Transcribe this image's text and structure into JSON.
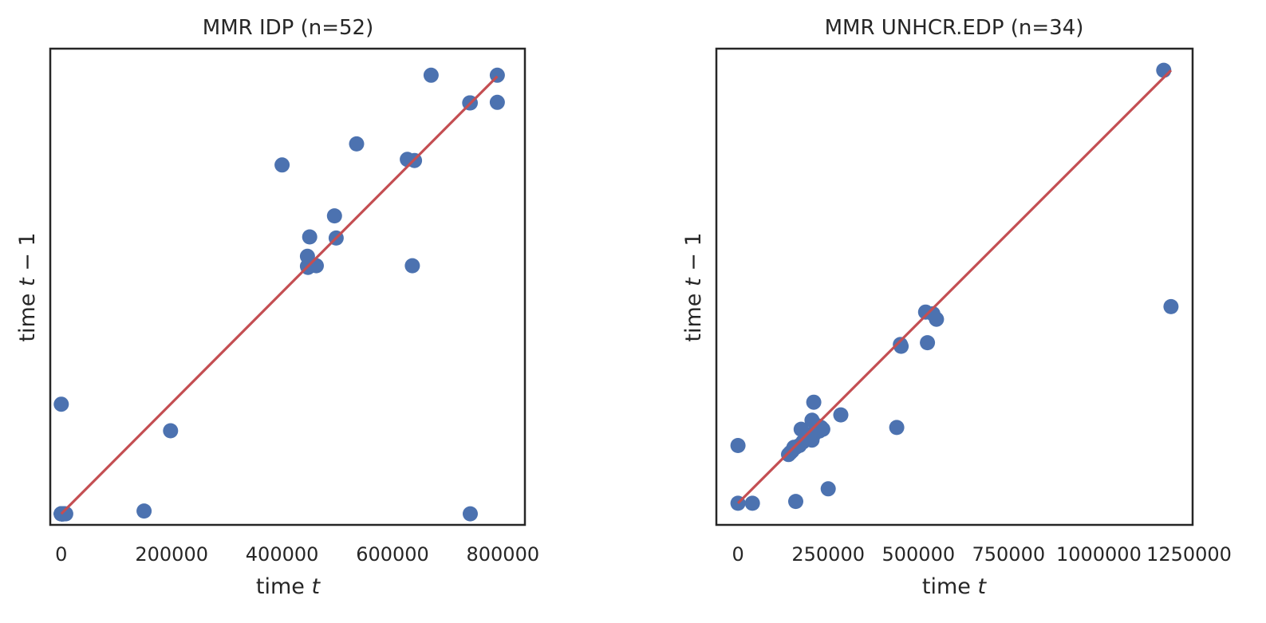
{
  "colors": {
    "points": "#4c72b0",
    "line": "#c44e52",
    "frame": "#262626",
    "text": "#262626",
    "background": "#ffffff"
  },
  "chart_data": [
    {
      "type": "scatter",
      "title": "MMR IDP (n=52)",
      "xlabel_prefix": "time ",
      "xlabel_var": "t",
      "ylabel_prefix": "time ",
      "ylabel_var": "t",
      "ylabel_suffix": " − 1",
      "xlim": [
        -20000,
        840000
      ],
      "ylim": [
        -20000,
        840000
      ],
      "xticks": [
        0,
        200000,
        400000,
        600000,
        800000
      ],
      "xtick_labels": [
        "0",
        "200000",
        "400000",
        "600000",
        "800000"
      ],
      "yticks_visible": false,
      "grid": false,
      "fit_line": [
        [
          0,
          0
        ],
        [
          790000,
          790000
        ]
      ],
      "points": [
        [
          0,
          0
        ],
        [
          3000,
          0
        ],
        [
          1000,
          0
        ],
        [
          0,
          0
        ],
        [
          2000,
          0
        ],
        [
          0,
          0
        ],
        [
          1500,
          0
        ],
        [
          500,
          0
        ],
        [
          4000,
          0
        ],
        [
          2500,
          0
        ],
        [
          0,
          0
        ],
        [
          3500,
          0
        ],
        [
          1000,
          0
        ],
        [
          0,
          0
        ],
        [
          2000,
          0
        ],
        [
          5000,
          0
        ],
        [
          0,
          0
        ],
        [
          1000,
          0
        ],
        [
          3000,
          0
        ],
        [
          0,
          0
        ],
        [
          2000,
          0
        ],
        [
          0,
          0
        ],
        [
          4000,
          0
        ],
        [
          1500,
          0
        ],
        [
          0,
          0
        ],
        [
          2500,
          0
        ],
        [
          500,
          0
        ],
        [
          0,
          0
        ],
        [
          3000,
          0
        ],
        [
          0,
          198000
        ],
        [
          198000,
          150000
        ],
        [
          150000,
          5000
        ],
        [
          741000,
          0
        ],
        [
          400000,
          630000
        ],
        [
          446000,
          465000
        ],
        [
          447000,
          445000
        ],
        [
          450000,
          500000
        ],
        [
          462000,
          448000
        ],
        [
          495000,
          538000
        ],
        [
          498000,
          498000
        ],
        [
          535000,
          668000
        ],
        [
          627000,
          640000
        ],
        [
          640000,
          638000
        ],
        [
          636000,
          448000
        ],
        [
          670000,
          792000
        ],
        [
          740000,
          742000
        ],
        [
          741000,
          742000
        ],
        [
          790000,
          792000
        ],
        [
          790000,
          743000
        ],
        [
          446000,
          447000
        ],
        [
          5000,
          0
        ],
        [
          8000,
          0
        ]
      ]
    },
    {
      "type": "scatter",
      "title": "MMR UNHCR.EDP (n=34)",
      "xlabel_prefix": "time ",
      "xlabel_var": "t",
      "ylabel_prefix": "time ",
      "ylabel_var": "t",
      "ylabel_suffix": " − 1",
      "xlim": [
        -60000,
        1260000
      ],
      "ylim": [
        -60000,
        1260000
      ],
      "xticks": [
        0,
        250000,
        500000,
        750000,
        1000000,
        1250000
      ],
      "xtick_labels": [
        "0",
        "250000",
        "500000",
        "750000",
        "1000000",
        "1250000"
      ],
      "yticks_visible": false,
      "grid": false,
      "fit_line": [
        [
          0,
          0
        ],
        [
          1200000,
          1200000
        ]
      ],
      "points": [
        [
          0,
          0
        ],
        [
          0,
          160000
        ],
        [
          40000,
          0
        ],
        [
          160000,
          5000
        ],
        [
          250000,
          40000
        ],
        [
          140000,
          135000
        ],
        [
          145000,
          140000
        ],
        [
          150000,
          145000
        ],
        [
          155000,
          155000
        ],
        [
          170000,
          160000
        ],
        [
          180000,
          170000
        ],
        [
          175000,
          205000
        ],
        [
          195000,
          180000
        ],
        [
          205000,
          175000
        ],
        [
          210000,
          190000
        ],
        [
          215000,
          205000
        ],
        [
          220000,
          215000
        ],
        [
          205000,
          230000
        ],
        [
          210000,
          280000
        ],
        [
          230000,
          210000
        ],
        [
          235000,
          205000
        ],
        [
          285000,
          245000
        ],
        [
          440000,
          210000
        ],
        [
          450000,
          440000
        ],
        [
          452000,
          435000
        ],
        [
          525000,
          445000
        ],
        [
          520000,
          530000
        ],
        [
          540000,
          525000
        ],
        [
          550000,
          510000
        ],
        [
          1180000,
          1200000
        ],
        [
          1200000,
          545000
        ],
        [
          160000,
          155000
        ],
        [
          190000,
          185000
        ],
        [
          225000,
          200000
        ]
      ]
    }
  ]
}
